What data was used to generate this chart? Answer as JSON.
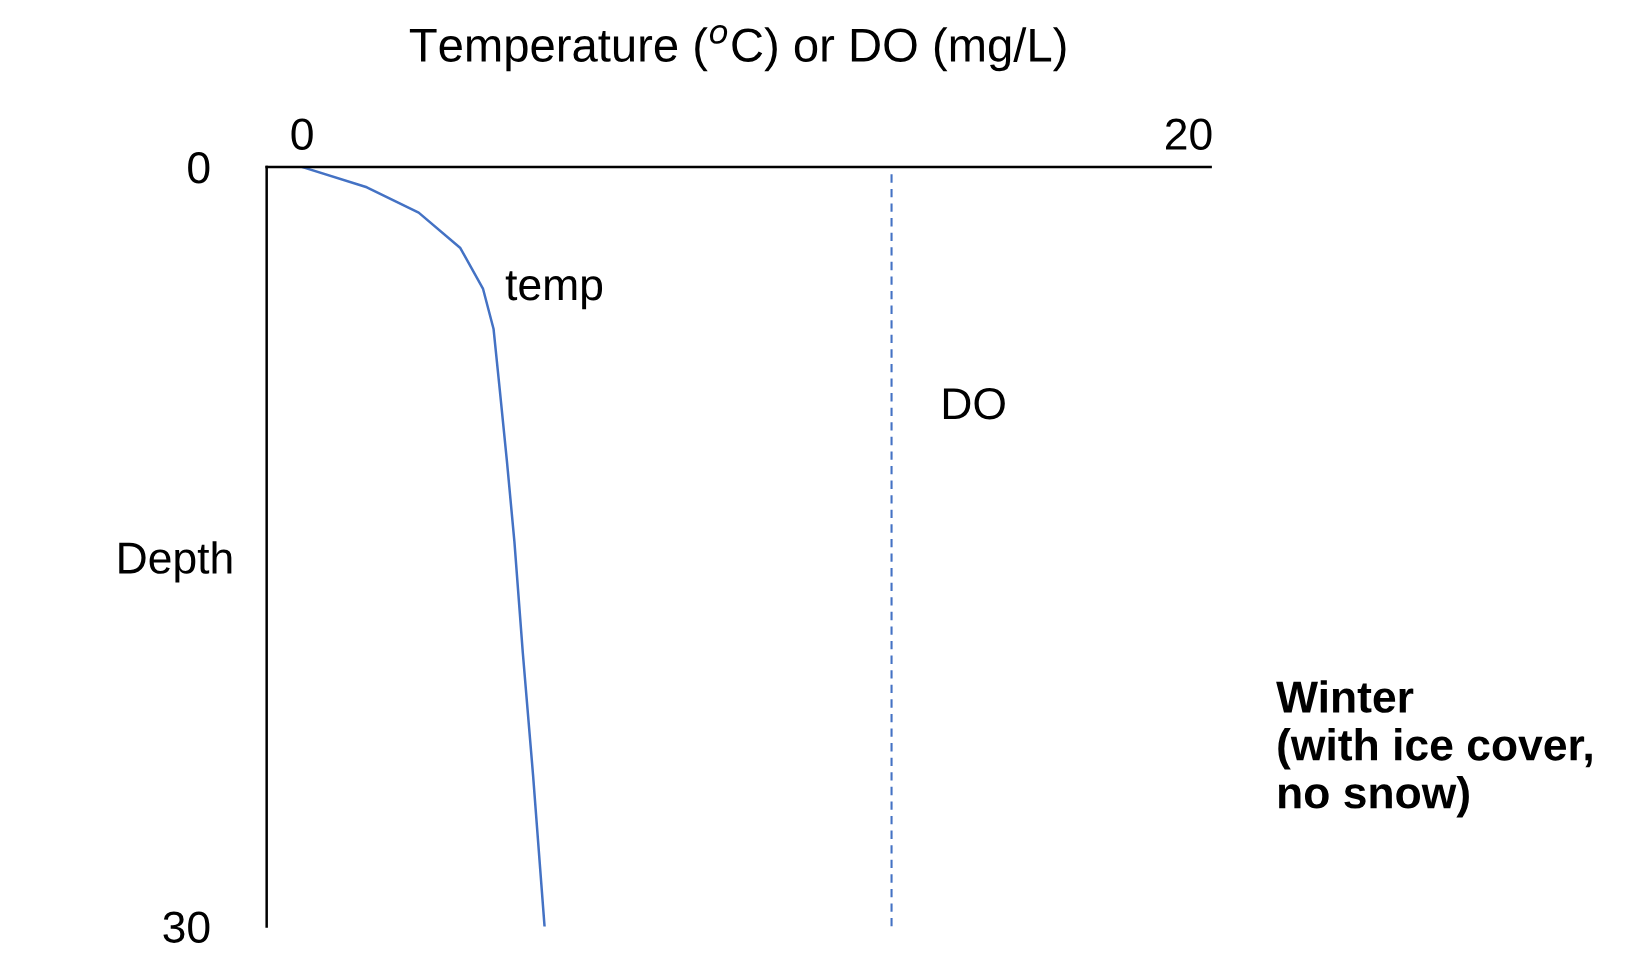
{
  "chart_data": {
    "type": "line",
    "title": "Temperature ($^{o}$C) or DO (mg/L)",
    "ylabel": "Depth",
    "x": [
      0,
      1.46,
      2.63,
      3.57,
      4.08,
      4.32,
      4.46,
      4.62,
      4.79,
      4.98,
      5.21,
      5.47
    ],
    "series": [
      {
        "name": "temp",
        "color": "#4472c4",
        "values": [
          0,
          0.8,
          1.8,
          3.2,
          4.8,
          6.4,
          8.8,
          11.6,
          14.8,
          19.2,
          24,
          30
        ]
      }
    ],
    "xlim": [
      -0.8,
      20.5
    ],
    "xticks": [
      0,
      20
    ],
    "ylim": [
      30,
      0
    ],
    "yticks": [
      0,
      30
    ],
    "ref_lines": [
      {
        "axis": "x",
        "value": 13.3,
        "label": "DO",
        "color": "#4472c4",
        "line_style": "dashed"
      }
    ],
    "annotations": [
      "Winter\n(with ice cover,\nno snow)"
    ],
    "grid": false,
    "legend": false,
    "marker": "none",
    "line_style": "solid"
  }
}
